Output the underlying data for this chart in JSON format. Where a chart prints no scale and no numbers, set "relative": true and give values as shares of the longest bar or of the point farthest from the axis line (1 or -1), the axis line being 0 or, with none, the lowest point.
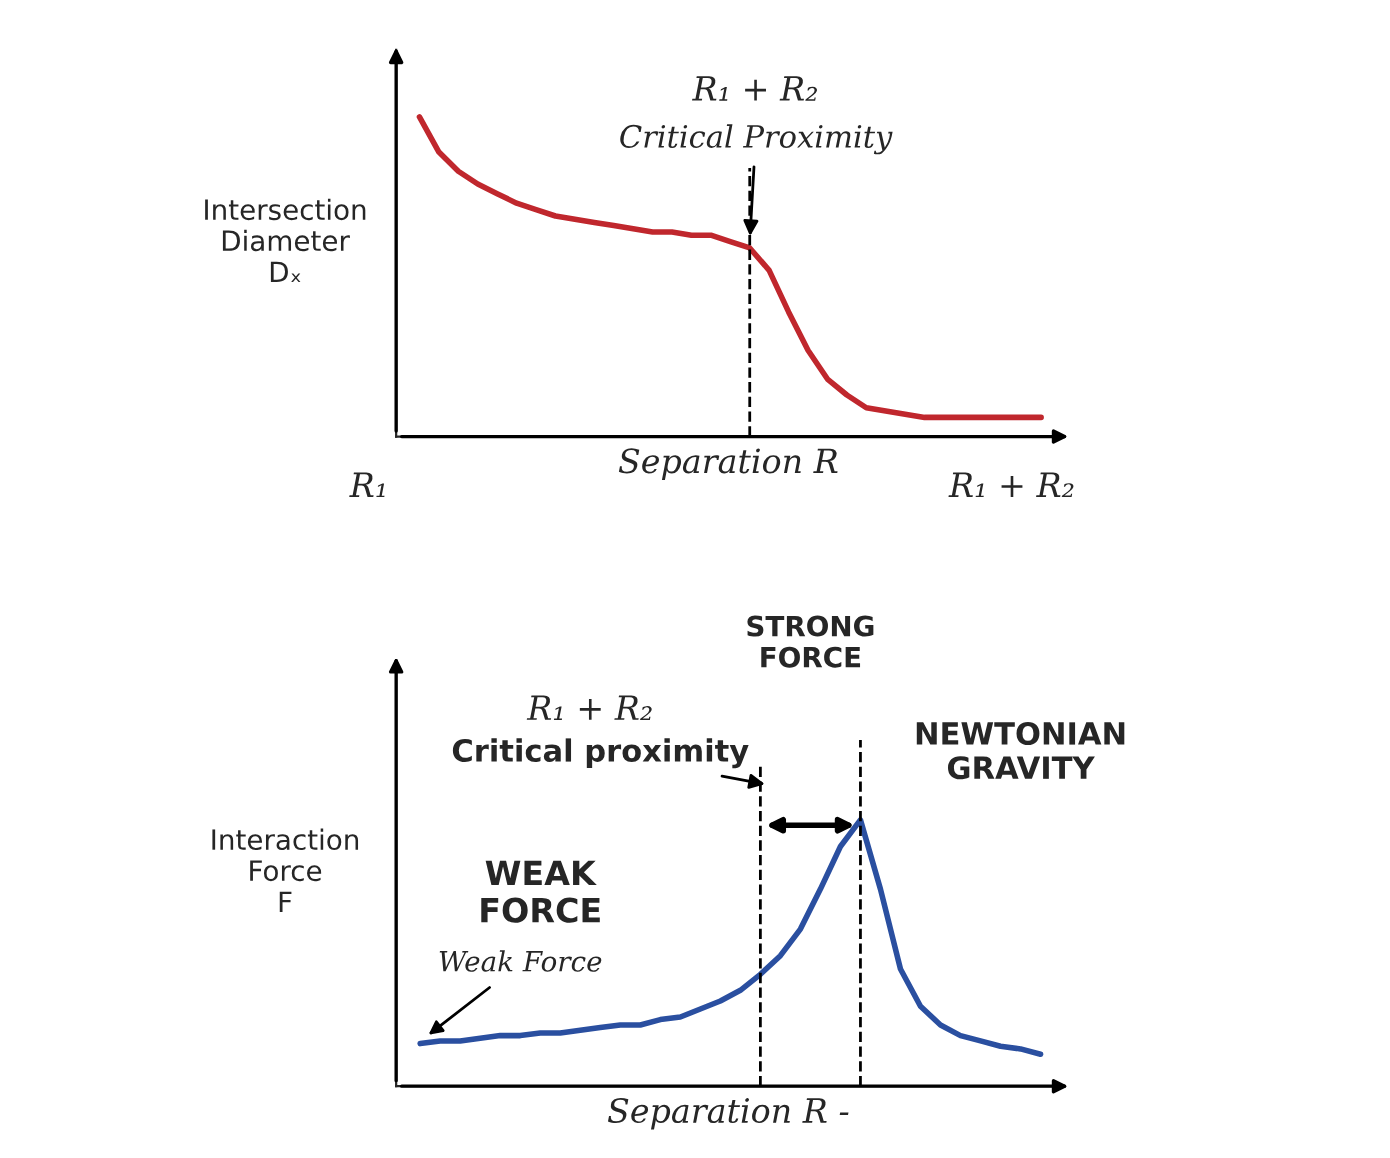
{
  "chart_data": [
    {
      "type": "line",
      "relative": true,
      "ylabel": "Intersection\nDiameter\nDₓ",
      "xlabel": "Separation R",
      "categories": [
        null,
        null,
        null,
        null,
        null,
        null,
        null,
        null,
        null,
        null,
        null,
        null,
        null,
        null,
        null,
        null,
        null,
        null,
        null,
        null,
        null,
        null,
        null,
        null,
        null,
        null,
        null,
        null,
        null,
        null,
        null,
        null,
        null
      ],
      "series": [
        {
          "color": "#c0272d",
          "values": [
            1.0,
            0.89,
            0.83,
            0.79,
            0.76,
            0.73,
            0.71,
            0.69,
            0.68,
            0.67,
            0.66,
            0.65,
            0.64,
            0.64,
            0.63,
            0.63,
            0.61,
            0.59,
            0.52,
            0.39,
            0.27,
            0.18,
            0.13,
            0.09,
            0.08,
            0.07,
            0.06,
            0.06,
            0.06,
            0.06,
            0.06,
            0.06,
            0.06
          ]
        }
      ],
      "annotations": [
        "R₁ + R₂",
        "Critical Proximity",
        "R₁",
        "R₁ + R₂"
      ],
      "tick_labels": false
    },
    {
      "type": "line",
      "relative": true,
      "ylabel": "Interaction\nForce\nF",
      "xlabel": "Separation R -",
      "categories": [
        null,
        null,
        null,
        null,
        null,
        null,
        null,
        null,
        null,
        null,
        null,
        null,
        null,
        null,
        null,
        null,
        null,
        null,
        null,
        null,
        null,
        null,
        null,
        null,
        null,
        null,
        null,
        null,
        null,
        null,
        null,
        null
      ],
      "series": [
        {
          "color": "#2a4fa0",
          "values": [
            0.16,
            0.17,
            0.17,
            0.18,
            0.19,
            0.19,
            0.2,
            0.2,
            0.21,
            0.22,
            0.23,
            0.23,
            0.25,
            0.26,
            0.29,
            0.32,
            0.36,
            0.42,
            0.49,
            0.59,
            0.74,
            0.9,
            1.0,
            0.74,
            0.44,
            0.3,
            0.23,
            0.19,
            0.17,
            0.15,
            0.14,
            0.12
          ]
        }
      ],
      "annotations": [
        "R₁ + R₂",
        "Critical proximity",
        "STRONG\nFORCE",
        "NEWTONIAN\nGRAVITY",
        "WEAK\nFORCE",
        "Weak Force"
      ],
      "tick_labels": false
    }
  ]
}
